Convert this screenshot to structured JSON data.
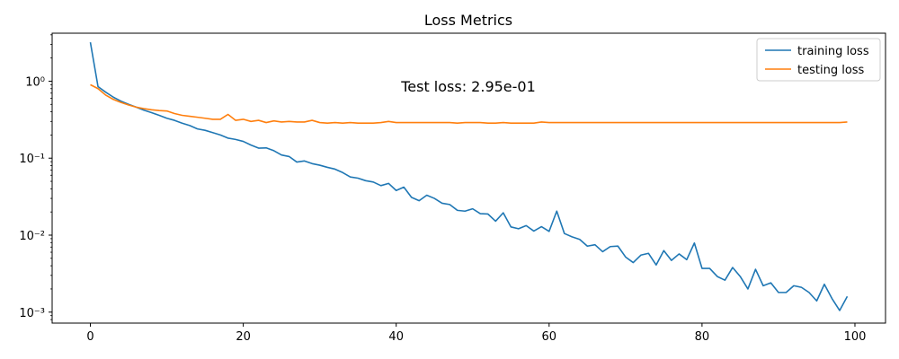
{
  "chart_data": {
    "type": "line",
    "title": "Loss Metrics",
    "xlabel": "",
    "ylabel": "",
    "yscale": "log",
    "xlim": [
      -5,
      104
    ],
    "ylim": [
      0.00072,
      4.2
    ],
    "grid": false,
    "legend_position": "top-right",
    "annotation": "Test loss: 2.95e-01",
    "x_ticks": [
      0,
      20,
      40,
      60,
      80,
      100
    ],
    "x_tick_labels": [
      "0",
      "20",
      "40",
      "60",
      "80",
      "100"
    ],
    "y_ticks": [
      0.001,
      0.01,
      0.1,
      1
    ],
    "y_tick_labels": [
      "10⁻³",
      "10⁻²",
      "10⁻¹",
      "10⁰"
    ],
    "series": [
      {
        "name": "training loss",
        "color": "#1f77b4",
        "x": [
          0,
          1,
          2,
          3,
          4,
          5,
          6,
          7,
          8,
          9,
          10,
          11,
          12,
          13,
          14,
          15,
          16,
          17,
          18,
          19,
          20,
          21,
          22,
          23,
          24,
          25,
          26,
          27,
          28,
          29,
          30,
          31,
          32,
          33,
          34,
          35,
          36,
          37,
          38,
          39,
          40,
          41,
          42,
          43,
          44,
          45,
          46,
          47,
          48,
          49,
          50,
          51,
          52,
          53,
          54,
          55,
          56,
          57,
          58,
          59,
          60,
          61,
          62,
          63,
          64,
          65,
          66,
          67,
          68,
          69,
          70,
          71,
          72,
          73,
          74,
          75,
          76,
          77,
          78,
          79,
          80,
          81,
          82,
          83,
          84,
          85,
          86,
          87,
          88,
          89,
          90,
          91,
          92,
          93,
          94,
          95,
          96,
          97,
          98,
          99
        ],
        "values": [
          3.2,
          0.85,
          0.72,
          0.62,
          0.55,
          0.5,
          0.46,
          0.42,
          0.39,
          0.36,
          0.33,
          0.31,
          0.285,
          0.265,
          0.24,
          0.23,
          0.215,
          0.2,
          0.182,
          0.175,
          0.165,
          0.148,
          0.135,
          0.136,
          0.125,
          0.11,
          0.105,
          0.089,
          0.092,
          0.085,
          0.081,
          0.076,
          0.072,
          0.065,
          0.057,
          0.055,
          0.051,
          0.049,
          0.044,
          0.047,
          0.038,
          0.042,
          0.031,
          0.028,
          0.033,
          0.03,
          0.026,
          0.025,
          0.021,
          0.0205,
          0.022,
          0.019,
          0.0188,
          0.0152,
          0.0195,
          0.0128,
          0.0121,
          0.0133,
          0.0113,
          0.0129,
          0.0112,
          0.0205,
          0.0105,
          0.0095,
          0.0088,
          0.0072,
          0.0075,
          0.0061,
          0.0071,
          0.0072,
          0.0052,
          0.0044,
          0.0055,
          0.0058,
          0.0041,
          0.0063,
          0.0047,
          0.0057,
          0.0048,
          0.0079,
          0.0037,
          0.0037,
          0.0029,
          0.0026,
          0.0038,
          0.0029,
          0.002,
          0.0036,
          0.0022,
          0.0024,
          0.0018,
          0.0018,
          0.0022,
          0.0021,
          0.0018,
          0.0014,
          0.0023,
          0.0015,
          0.00105,
          0.0016
        ]
      },
      {
        "name": "testing loss",
        "color": "#ff7f0e",
        "x": [
          0,
          1,
          2,
          3,
          4,
          5,
          6,
          7,
          8,
          9,
          10,
          11,
          12,
          13,
          14,
          15,
          16,
          17,
          18,
          19,
          20,
          21,
          22,
          23,
          24,
          25,
          26,
          27,
          28,
          29,
          30,
          31,
          32,
          33,
          34,
          35,
          36,
          37,
          38,
          39,
          40,
          41,
          42,
          43,
          44,
          45,
          46,
          47,
          48,
          49,
          50,
          51,
          52,
          53,
          54,
          55,
          56,
          57,
          58,
          59,
          60,
          61,
          62,
          63,
          64,
          65,
          66,
          67,
          68,
          69,
          70,
          71,
          72,
          73,
          74,
          75,
          76,
          77,
          78,
          79,
          80,
          81,
          82,
          83,
          84,
          85,
          86,
          87,
          88,
          89,
          90,
          91,
          92,
          93,
          94,
          95,
          96,
          97,
          98,
          99
        ],
        "values": [
          0.9,
          0.8,
          0.66,
          0.58,
          0.53,
          0.49,
          0.46,
          0.44,
          0.425,
          0.415,
          0.41,
          0.38,
          0.36,
          0.35,
          0.34,
          0.33,
          0.32,
          0.32,
          0.37,
          0.31,
          0.32,
          0.3,
          0.31,
          0.29,
          0.305,
          0.295,
          0.3,
          0.295,
          0.295,
          0.31,
          0.29,
          0.285,
          0.29,
          0.285,
          0.29,
          0.285,
          0.285,
          0.285,
          0.29,
          0.3,
          0.29,
          0.29,
          0.29,
          0.29,
          0.29,
          0.29,
          0.29,
          0.29,
          0.285,
          0.29,
          0.29,
          0.29,
          0.285,
          0.285,
          0.29,
          0.285,
          0.285,
          0.285,
          0.285,
          0.295,
          0.29,
          0.29,
          0.29,
          0.29,
          0.29,
          0.29,
          0.29,
          0.29,
          0.29,
          0.29,
          0.29,
          0.29,
          0.29,
          0.29,
          0.29,
          0.29,
          0.29,
          0.29,
          0.29,
          0.29,
          0.29,
          0.29,
          0.29,
          0.29,
          0.29,
          0.29,
          0.29,
          0.29,
          0.29,
          0.29,
          0.29,
          0.29,
          0.29,
          0.29,
          0.29,
          0.29,
          0.29,
          0.29,
          0.29,
          0.295
        ]
      }
    ]
  }
}
